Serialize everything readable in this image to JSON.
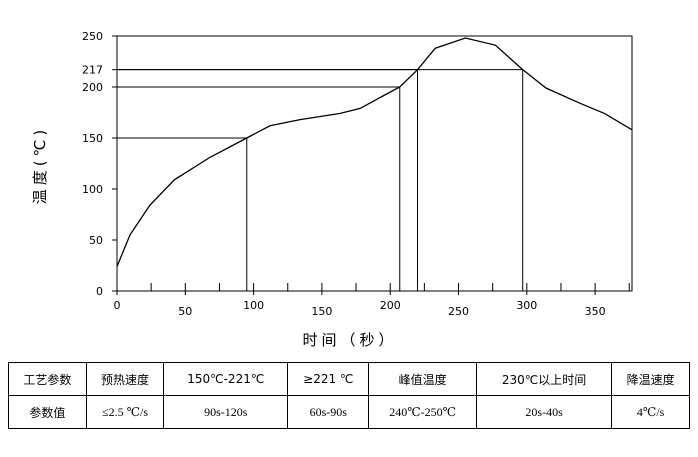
{
  "chart_data": {
    "type": "line",
    "ylabel": "温度(℃)",
    "xlabel": "时间（秒）",
    "x": [
      0,
      9.5,
      24,
      42,
      68,
      95,
      112,
      134,
      163,
      178,
      193,
      207,
      220,
      233,
      255,
      277,
      297,
      314,
      339,
      357,
      377
    ],
    "series": [
      {
        "color": "#000000",
        "values": [
          24,
          55,
          84,
          109,
          131,
          150,
          162,
          168,
          174,
          179,
          190,
          200,
          217,
          238,
          248,
          241,
          217,
          199,
          184,
          174,
          158
        ]
      }
    ],
    "reference_points": [
      {
        "x": 95,
        "y": 150
      },
      {
        "x": 207,
        "y": 200
      },
      {
        "x": 220,
        "y": 217
      },
      {
        "x": 297,
        "y": 217
      }
    ],
    "xlim": [
      0,
      377
    ],
    "ylim": [
      0,
      250
    ],
    "xticks": [
      0,
      50,
      100,
      150,
      200,
      250,
      300,
      350
    ],
    "xminorticks": [
      25,
      75,
      125,
      175,
      225,
      275,
      325,
      375
    ],
    "yticks": [
      0,
      50,
      100,
      150,
      200,
      217,
      250
    ]
  },
  "table": {
    "rows": [
      [
        "工艺参数",
        "预热速度",
        "150℃-221℃",
        "≥221 ℃",
        "峰值温度",
        "230℃以上时间",
        "降温速度"
      ],
      [
        "参数值",
        "≤2.5 ℃/s",
        "90s-120s",
        "60s-90s",
        "240℃-250℃",
        "20s-40s",
        "4℃/s"
      ]
    ]
  }
}
